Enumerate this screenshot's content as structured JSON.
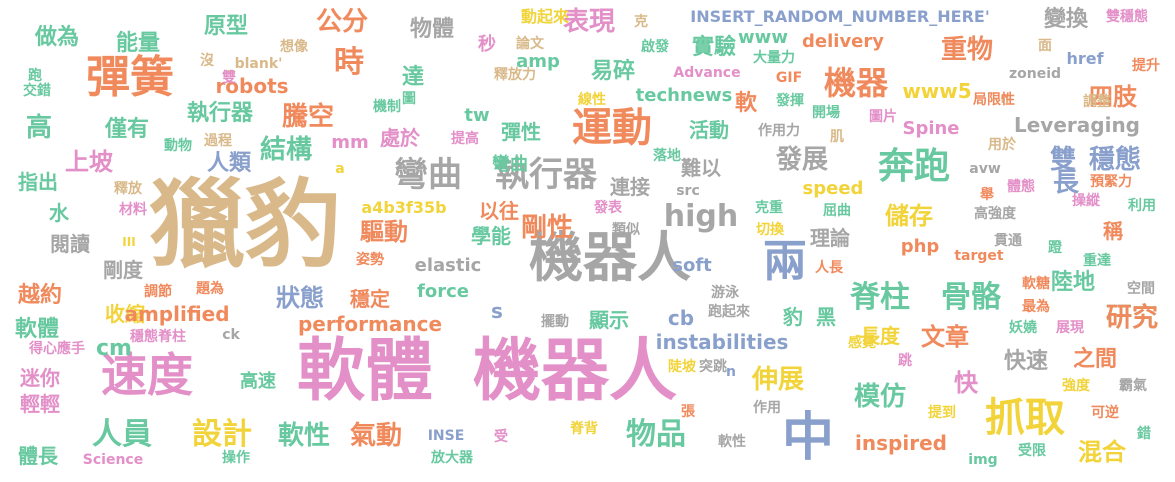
{
  "palette": {
    "tan": "#d9b98a",
    "gray": "#a6a6a6",
    "pink": "#e38fc8",
    "orange": "#f08a5d",
    "green": "#68c9a0",
    "yellow": "#f2d43a",
    "blue": "#8aa0cc",
    "lime": "#b5d55a"
  },
  "words": [
    {
      "t": "獵豹",
      "c": "tan"
    },
    {
      "t": "軟體",
      "c": "pink"
    },
    {
      "t": "機器人",
      "c": "pink"
    },
    {
      "t": "機器人",
      "c": "gray"
    },
    {
      "t": "中",
      "c": "blue"
    },
    {
      "t": "兩",
      "c": "blue"
    },
    {
      "t": "速度",
      "c": "pink"
    },
    {
      "t": "彈簧",
      "c": "orange"
    },
    {
      "t": "運動",
      "c": "orange"
    },
    {
      "t": "奔跑",
      "c": "green"
    },
    {
      "t": "抓取",
      "c": "yellow"
    },
    {
      "t": "彎曲",
      "c": "gray"
    },
    {
      "t": "執行器",
      "c": "gray"
    },
    {
      "t": "機器",
      "c": "orange"
    },
    {
      "t": "脊柱",
      "c": "green"
    },
    {
      "t": "骨骼",
      "c": "green"
    },
    {
      "t": "研究",
      "c": "green"
    },
    {
      "t": "人員",
      "c": "green"
    },
    {
      "t": "設計",
      "c": "yellow"
    },
    {
      "t": "物品",
      "c": "green"
    },
    {
      "t": "high",
      "c": "gray"
    },
    {
      "t": "時",
      "c": "orange"
    },
    {
      "t": "重物",
      "c": "orange"
    },
    {
      "t": "發展",
      "c": "gray"
    },
    {
      "t": "模仿",
      "c": "green"
    },
    {
      "t": "伸展",
      "c": "yellow"
    },
    {
      "t": "研究",
      "c": "orange"
    },
    {
      "t": "雙",
      "c": "blue"
    },
    {
      "t": "穩態",
      "c": "blue"
    },
    {
      "t": "長",
      "c": "blue"
    },
    {
      "t": "四肢",
      "c": "orange"
    },
    {
      "t": "表現",
      "c": "pink"
    },
    {
      "t": "公分",
      "c": "orange"
    },
    {
      "t": "騰空",
      "c": "orange"
    },
    {
      "t": "結構",
      "c": "green"
    },
    {
      "t": "軟性",
      "c": "green"
    },
    {
      "t": "氣動",
      "c": "orange"
    },
    {
      "t": "狀態",
      "c": "blue"
    },
    {
      "t": "剛性",
      "c": "orange"
    },
    {
      "t": "驅動",
      "c": "orange"
    },
    {
      "t": "儲存",
      "c": "yellow"
    },
    {
      "t": "快速",
      "c": "gray"
    },
    {
      "t": "之間",
      "c": "orange"
    },
    {
      "t": "文章",
      "c": "orange"
    },
    {
      "t": "快",
      "c": "pink"
    },
    {
      "t": "陸地",
      "c": "green"
    },
    {
      "t": "混合",
      "c": "yellow"
    },
    {
      "t": "高",
      "c": "green"
    },
    {
      "t": "上坡",
      "c": "pink"
    },
    {
      "t": "越約",
      "c": "orange"
    },
    {
      "t": "軟體",
      "c": "green"
    },
    {
      "t": "能量",
      "c": "green"
    },
    {
      "t": "做為",
      "c": "green"
    },
    {
      "t": "原型",
      "c": "green"
    },
    {
      "t": "物體",
      "c": "gray"
    },
    {
      "t": "變換",
      "c": "gray"
    },
    {
      "t": "實驗",
      "c": "green"
    },
    {
      "t": "易碎",
      "c": "green"
    },
    {
      "t": "達",
      "c": "green"
    },
    {
      "t": "執行器",
      "c": "green"
    },
    {
      "t": "僅有",
      "c": "green"
    },
    {
      "t": "人類",
      "c": "blue"
    },
    {
      "t": "處於",
      "c": "pink"
    },
    {
      "t": "彈性",
      "c": "green"
    },
    {
      "t": "彎曲",
      "c": "green"
    },
    {
      "t": "軟",
      "c": "orange"
    },
    {
      "t": "活動",
      "c": "green"
    },
    {
      "t": "連接",
      "c": "gray"
    },
    {
      "t": "難以",
      "c": "gray"
    },
    {
      "t": "以往",
      "c": "orange"
    },
    {
      "t": "學能",
      "c": "green"
    },
    {
      "t": "理論",
      "c": "gray"
    },
    {
      "t": "稱",
      "c": "orange"
    },
    {
      "t": "長度",
      "c": "yellow"
    },
    {
      "t": "穩定",
      "c": "orange"
    },
    {
      "t": "收縮",
      "c": "yellow"
    },
    {
      "t": "剛度",
      "c": "gray"
    },
    {
      "t": "閱讀",
      "c": "gray"
    },
    {
      "t": "指出",
      "c": "green"
    },
    {
      "t": "水",
      "c": "green"
    },
    {
      "t": "顯示",
      "c": "green"
    },
    {
      "t": "迷你",
      "c": "pink"
    },
    {
      "t": "高速",
      "c": "green"
    },
    {
      "t": "輕輕",
      "c": "pink"
    },
    {
      "t": "體長",
      "c": "green"
    },
    {
      "t": "豹",
      "c": "green"
    },
    {
      "t": "黑",
      "c": "green"
    },
    {
      "t": "performance",
      "c": "orange"
    },
    {
      "t": "amplified",
      "c": "orange"
    },
    {
      "t": "instabilities",
      "c": "blue"
    },
    {
      "t": "technews",
      "c": "green"
    },
    {
      "t": "delivery",
      "c": "orange"
    },
    {
      "t": "robots",
      "c": "orange"
    },
    {
      "t": "Leveraging",
      "c": "gray"
    },
    {
      "t": "Spine",
      "c": "pink"
    },
    {
      "t": "speed",
      "c": "yellow"
    },
    {
      "t": "elastic",
      "c": "gray"
    },
    {
      "t": "force",
      "c": "green"
    },
    {
      "t": "soft",
      "c": "blue"
    },
    {
      "t": "php",
      "c": "orange"
    },
    {
      "t": "inspired",
      "c": "orange"
    },
    {
      "t": "www5",
      "c": "yellow"
    },
    {
      "t": "www",
      "c": "green"
    },
    {
      "t": "amp",
      "c": "green"
    },
    {
      "t": "mm",
      "c": "pink"
    },
    {
      "t": "tw",
      "c": "green"
    },
    {
      "t": "cb",
      "c": "blue"
    },
    {
      "t": "cm",
      "c": "green"
    },
    {
      "t": "s",
      "c": "blue"
    },
    {
      "t": "INSERT_RANDOM_NUMBER_HERE'",
      "c": "blue"
    },
    {
      "t": "a4b3f35b",
      "c": "yellow"
    },
    {
      "t": "zoneid",
      "c": "gray"
    },
    {
      "t": "target",
      "c": "orange"
    },
    {
      "t": "Advance",
      "c": "pink"
    },
    {
      "t": "_blank'",
      "c": "tan"
    },
    {
      "t": "href",
      "c": "blue"
    },
    {
      "t": "GIF",
      "c": "orange"
    },
    {
      "t": "INSE",
      "c": "blue"
    },
    {
      "t": "Science",
      "c": "pink"
    },
    {
      "t": "img",
      "c": "green"
    },
    {
      "t": "src",
      "c": "gray"
    },
    {
      "t": "avw",
      "c": "gray"
    },
    {
      "t": "ck",
      "c": "gray"
    },
    {
      "t": "a",
      "c": "yellow"
    },
    {
      "t": "n",
      "c": "blue"
    },
    {
      "t": "II",
      "c": "tan"
    },
    {
      "t": "III",
      "c": "yellow"
    },
    {
      "t": "動起來",
      "c": "yellow"
    },
    {
      "t": "秒",
      "c": "pink"
    },
    {
      "t": "論文",
      "c": "tan"
    },
    {
      "t": "克",
      "c": "tan"
    },
    {
      "t": "啟發",
      "c": "green"
    },
    {
      "t": "大量力",
      "c": "green"
    },
    {
      "t": "面",
      "c": "tan"
    },
    {
      "t": "提升",
      "c": "orange"
    },
    {
      "t": "雙穩態",
      "c": "pink"
    },
    {
      "t": "想像",
      "c": "tan"
    },
    {
      "t": "沒",
      "c": "tan"
    },
    {
      "t": "雙",
      "c": "pink"
    },
    {
      "t": "圖",
      "c": "green"
    },
    {
      "t": "釋放力",
      "c": "tan"
    },
    {
      "t": "線性",
      "c": "yellow"
    },
    {
      "t": "發揮",
      "c": "green"
    },
    {
      "t": "局限性",
      "c": "orange"
    },
    {
      "t": "調整",
      "c": "tan"
    },
    {
      "t": "開場",
      "c": "green"
    },
    {
      "t": "圖片",
      "c": "pink"
    },
    {
      "t": "機制",
      "c": "green"
    },
    {
      "t": "提高",
      "c": "pink"
    },
    {
      "t": "作用力",
      "c": "gray"
    },
    {
      "t": "肌",
      "c": "tan"
    },
    {
      "t": "過程",
      "c": "tan"
    },
    {
      "t": "動物",
      "c": "green"
    },
    {
      "t": "落地",
      "c": "green"
    },
    {
      "t": "用於",
      "c": "tan"
    },
    {
      "t": "體態",
      "c": "pink"
    },
    {
      "t": "預緊力",
      "c": "orange"
    },
    {
      "t": "舉",
      "c": "orange"
    },
    {
      "t": "高強度",
      "c": "gray"
    },
    {
      "t": "操縱",
      "c": "pink"
    },
    {
      "t": "利用",
      "c": "green"
    },
    {
      "t": "發表",
      "c": "pink"
    },
    {
      "t": "類似",
      "c": "gray"
    },
    {
      "t": "克重",
      "c": "green"
    },
    {
      "t": "屈曲",
      "c": "green"
    },
    {
      "t": "切換",
      "c": "yellow"
    },
    {
      "t": "貫通",
      "c": "gray"
    },
    {
      "t": "蹬",
      "c": "green"
    },
    {
      "t": "人長",
      "c": "orange"
    },
    {
      "t": "重達",
      "c": "green"
    },
    {
      "t": "軟糖",
      "c": "orange"
    },
    {
      "t": "空間",
      "c": "gray"
    },
    {
      "t": "最為",
      "c": "orange"
    },
    {
      "t": "妖嬈",
      "c": "green"
    },
    {
      "t": "展現",
      "c": "pink"
    },
    {
      "t": "游泳",
      "c": "gray"
    },
    {
      "t": "跑起來",
      "c": "gray"
    },
    {
      "t": "擺動",
      "c": "gray"
    },
    {
      "t": "感覺",
      "c": "yellow"
    },
    {
      "t": "跳",
      "c": "pink"
    },
    {
      "t": "陡坡",
      "c": "yellow"
    },
    {
      "t": "突跳",
      "c": "gray"
    },
    {
      "t": "強度",
      "c": "yellow"
    },
    {
      "t": "霸氣",
      "c": "gray"
    },
    {
      "t": "提到",
      "c": "yellow"
    },
    {
      "t": "可逆",
      "c": "orange"
    },
    {
      "t": "錯",
      "c": "green"
    },
    {
      "t": "脊背",
      "c": "yellow"
    },
    {
      "t": "張",
      "c": "orange"
    },
    {
      "t": "作用",
      "c": "gray"
    },
    {
      "t": "受",
      "c": "pink"
    },
    {
      "t": "受限",
      "c": "green"
    },
    {
      "t": "放大器",
      "c": "green"
    },
    {
      "t": "操作",
      "c": "green"
    },
    {
      "t": "軟性",
      "c": "gray"
    },
    {
      "t": "調節",
      "c": "orange"
    },
    {
      "t": "題為",
      "c": "orange"
    },
    {
      "t": "姿勢",
      "c": "orange"
    },
    {
      "t": "穩態脊柱",
      "c": "pink"
    },
    {
      "t": "得心應手",
      "c": "pink"
    },
    {
      "t": "材料",
      "c": "pink"
    },
    {
      "t": "釋放",
      "c": "tan"
    },
    {
      "t": "跑",
      "c": "green"
    },
    {
      "t": "交錯",
      "c": "green"
    }
  ]
}
